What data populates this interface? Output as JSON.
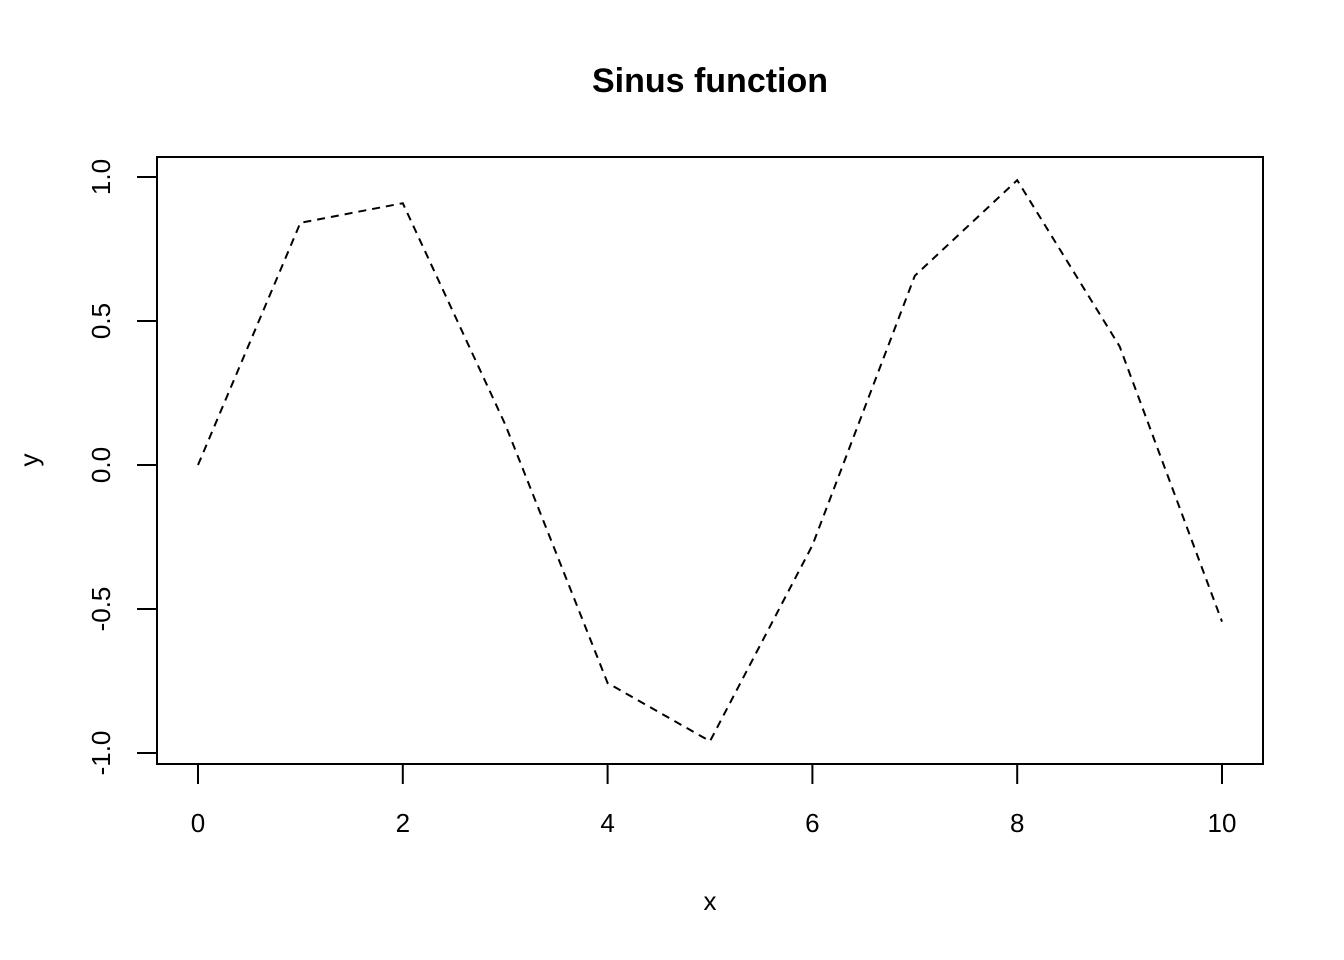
{
  "chart_data": {
    "type": "line",
    "title": "Sinus function",
    "xlabel": "x",
    "ylabel": "y",
    "x": [
      0,
      1,
      2,
      3,
      4,
      5,
      6,
      7,
      8,
      9,
      10
    ],
    "series": [
      {
        "values": [
          0,
          0.841,
          0.909,
          0.141,
          -0.757,
          -0.959,
          -0.279,
          0.657,
          0.989,
          0.412,
          -0.544
        ],
        "line_style": "dashed",
        "color": "#000000"
      }
    ],
    "xticks": [
      "0",
      "2",
      "4",
      "6",
      "8",
      "10"
    ],
    "yticks": [
      "-1.0",
      "-0.5",
      "0.0",
      "0.5",
      "1.0"
    ],
    "xlim": [
      -0.4,
      10.4
    ],
    "ylim": [
      -1.07,
      1.07
    ],
    "grid": false
  }
}
